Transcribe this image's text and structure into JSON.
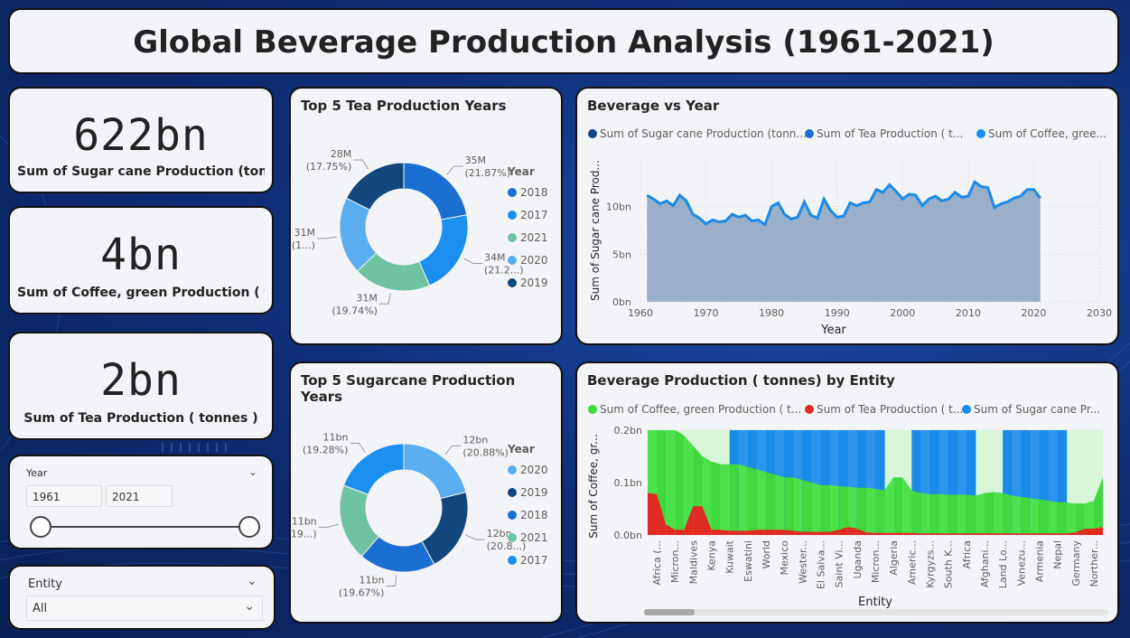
{
  "dashboard": {
    "title": "Global Beverage Production Analysis (1961-2021)"
  },
  "kpis": [
    {
      "value": "622bn",
      "label": "Sum of Sugar cane Production (tonn..."
    },
    {
      "value": "4bn",
      "label": "Sum of Coffee, green Production ( t..."
    },
    {
      "value": "2bn",
      "label": "Sum of Tea  Production ( tonnes )"
    }
  ],
  "year_slicer": {
    "title": "Year",
    "start": "1961",
    "end": "2021",
    "start_value": 1961,
    "end_value": 2021,
    "min": 1961,
    "max": 2021
  },
  "entity_slicer": {
    "title": "Entity",
    "selected": "All"
  },
  "colors": {
    "dark_navy": "#12467c",
    "blue": "#1a6fd1",
    "sky": "#1b8ff0",
    "teal": "#6fc2a2",
    "light_blue": "#5aaef0",
    "green": "#3fd83f",
    "red": "#e02a22",
    "area_fill": "#9aafc9",
    "line": "#1a8be8"
  },
  "tea_donut": {
    "title": "Top 5 Tea Production Years",
    "legend_title": "Year",
    "chart_data": {
      "type": "pie",
      "title": "Top 5 Tea Production Years",
      "categories": [
        "2018",
        "2017",
        "2021",
        "2020",
        "2019"
      ],
      "values": [
        35,
        34,
        31,
        31,
        28
      ],
      "unit": "M",
      "value_labels": [
        "35M",
        "34M",
        "31M",
        "31M",
        "28M"
      ],
      "pct_labels": [
        "(21.87%)",
        "(21.2...)",
        "(19.74%)",
        "(1...)",
        "(17.75%)"
      ],
      "colors": [
        "#1a6fd1",
        "#1b8ff0",
        "#6fc2a2",
        "#5aaef0",
        "#12467c"
      ]
    }
  },
  "sugar_donut": {
    "title": "Top 5 Sugarcane Production Years",
    "legend_title": "Year",
    "chart_data": {
      "type": "pie",
      "title": "Top 5 Sugarcane Production Years",
      "categories": [
        "2020",
        "2019",
        "2018",
        "2021",
        "2017"
      ],
      "values": [
        12,
        12,
        11,
        11,
        11
      ],
      "unit": "bn",
      "value_labels": [
        "12bn",
        "12bn",
        "11bn",
        "11bn",
        "11bn"
      ],
      "pct_labels": [
        "(20.88%)",
        "(20.8...)",
        "(19.67%)",
        "(19...)",
        "(19.28%)"
      ],
      "colors": [
        "#5aaef0",
        "#12467c",
        "#1a6fd1",
        "#6fc2a2",
        "#1b8ff0"
      ]
    }
  },
  "area_chart": {
    "title": "Beverage vs Year",
    "legend": [
      "Sum of Sugar cane Production (tonn...",
      "Sum of Tea  Production ( t...",
      "Sum of Coffee, gree..."
    ],
    "legend_colors": [
      "#12467c",
      "#1a6fd1",
      "#1b8ff0"
    ],
    "xlabel": "Year",
    "ylabel": "Sum of Sugar cane Prod...",
    "x_ticks": [
      "1960",
      "1970",
      "1980",
      "1990",
      "2000",
      "2010",
      "2020",
      "2030"
    ],
    "y_ticks": [
      "0bn",
      "5bn",
      "10bn"
    ],
    "chart_data": {
      "type": "area",
      "xlim": [
        1960,
        2030
      ],
      "ylim": [
        0,
        15
      ],
      "unit": "bn",
      "x": [
        1961,
        1962,
        1963,
        1964,
        1965,
        1966,
        1967,
        1968,
        1969,
        1970,
        1971,
        1972,
        1973,
        1974,
        1975,
        1976,
        1977,
        1978,
        1979,
        1980,
        1981,
        1982,
        1983,
        1984,
        1985,
        1986,
        1987,
        1988,
        1989,
        1990,
        1991,
        1992,
        1993,
        1994,
        1995,
        1996,
        1997,
        1998,
        1999,
        2000,
        2001,
        2002,
        2003,
        2004,
        2005,
        2006,
        2007,
        2008,
        2009,
        2010,
        2011,
        2012,
        2013,
        2014,
        2015,
        2016,
        2017,
        2018,
        2019,
        2020,
        2021
      ],
      "values": [
        11.2,
        10.8,
        10.3,
        10.6,
        10.1,
        11.2,
        10.6,
        9.2,
        8.8,
        8.2,
        8.6,
        8.4,
        8.5,
        9.2,
        8.9,
        9.1,
        8.5,
        8.6,
        8.1,
        10.0,
        10.4,
        9.2,
        8.7,
        8.9,
        10.5,
        9.1,
        8.8,
        10.8,
        9.6,
        8.9,
        9.0,
        10.4,
        10.1,
        10.4,
        10.5,
        11.8,
        11.5,
        12.3,
        11.6,
        10.8,
        11.3,
        11.2,
        10.1,
        10.8,
        11.1,
        10.6,
        10.8,
        11.5,
        11.0,
        11.1,
        12.6,
        12.1,
        12.0,
        9.9,
        10.3,
        10.5,
        10.9,
        11.1,
        11.8,
        11.8,
        10.9
      ]
    }
  },
  "ribbon_chart": {
    "title": "Beverage Production ( tonnes) by Entity",
    "legend": [
      "Sum of Coffee, green Production ( t...",
      "Sum of Tea  Production ( t...",
      "Sum of Sugar cane Pr..."
    ],
    "legend_colors": [
      "#3fd83f",
      "#e02a22",
      "#1a8be8"
    ],
    "xlabel": "Entity",
    "ylabel": "Sum of Coffee, gr...",
    "y_ticks": [
      "0.0bn",
      "0.1bn",
      "0.2bn"
    ],
    "entities": [
      "Africa (...",
      "Micron...",
      "Maldives",
      "Kenya",
      "Kuwait",
      "Eswatini",
      "World",
      "Mexico",
      "Wester...",
      "El Salva...",
      "Saint Vi...",
      "Uganda",
      "Micron...",
      "Algeria",
      "Americ...",
      "Kyrgyzs...",
      "South K...",
      "Africa",
      "Afghani...",
      "Land Lo...",
      "Venezu...",
      "Armenia",
      "Nepal",
      "Germany",
      "Norther..."
    ],
    "chart_data": {
      "type": "area",
      "ylim": [
        0,
        0.2
      ],
      "unit": "bn",
      "series": [
        {
          "name": "Sum of Coffee, green Production ( t...",
          "values": [
            0.2,
            0.2,
            0.2,
            0.2,
            0.19,
            0.17,
            0.15,
            0.14,
            0.135,
            0.135,
            0.135,
            0.13,
            0.125,
            0.12,
            0.115,
            0.11,
            0.11,
            0.105,
            0.1,
            0.095,
            0.095,
            0.093,
            0.092,
            0.09,
            0.09,
            0.088,
            0.085,
            0.11,
            0.11,
            0.085,
            0.08,
            0.078,
            0.078,
            0.077,
            0.077,
            0.077,
            0.075,
            0.08,
            0.082,
            0.08,
            0.075,
            0.073,
            0.07,
            0.068,
            0.065,
            0.063,
            0.062,
            0.06,
            0.06,
            0.065,
            0.11
          ]
        },
        {
          "name": "Sum of Tea  Production ( t...",
          "values": [
            0.08,
            0.078,
            0.02,
            0.01,
            0.01,
            0.055,
            0.055,
            0.01,
            0.01,
            0.008,
            0.008,
            0.008,
            0.01,
            0.01,
            0.01,
            0.01,
            0.008,
            0.006,
            0.006,
            0.006,
            0.006,
            0.01,
            0.015,
            0.012,
            0.005,
            0.004,
            0.004,
            0.004,
            0.004,
            0.004,
            0.003,
            0.003,
            0.003,
            0.003,
            0.003,
            0.003,
            0.003,
            0.003,
            0.003,
            0.003,
            0.003,
            0.003,
            0.003,
            0.003,
            0.003,
            0.003,
            0.003,
            0.005,
            0.012,
            0.012,
            0.015
          ]
        },
        {
          "name": "Sum of Sugar cane Pr...",
          "values": [
            0,
            0,
            0,
            0,
            0,
            0,
            0,
            0,
            0,
            0.2,
            0.2,
            0.2,
            0.2,
            0.2,
            0.2,
            0.2,
            0.2,
            0.2,
            0.2,
            0.2,
            0.2,
            0.2,
            0.2,
            0.2,
            0.2,
            0.2,
            0.2,
            0,
            0,
            0.2,
            0.2,
            0.2,
            0.2,
            0.2,
            0.2,
            0.2,
            0.2,
            0,
            0,
            0.2,
            0.2,
            0.2,
            0.2,
            0.2,
            0.2,
            0.2,
            0.2,
            0,
            0,
            0.2,
            0
          ]
        }
      ]
    }
  }
}
